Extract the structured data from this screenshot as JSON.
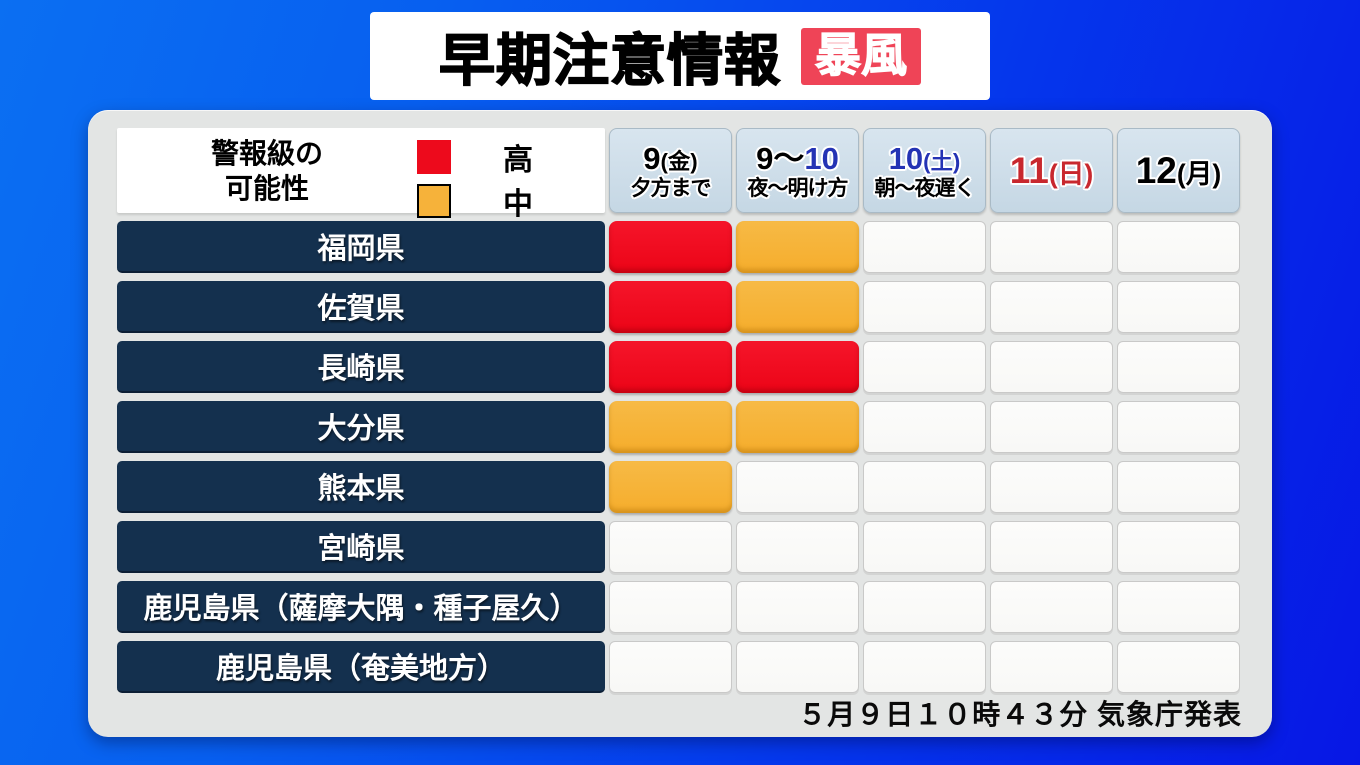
{
  "title": {
    "text": "早期注意情報",
    "badge": "暴風"
  },
  "legend": {
    "title_line1": "警報級の",
    "title_line2": "可能性",
    "items": [
      {
        "label": "高",
        "color": "#ed0a1c"
      },
      {
        "label": "中",
        "color": "#f6b23a"
      }
    ]
  },
  "columns": [
    {
      "p1": "9",
      "p2": "(金)",
      "sub": "夕方まで"
    },
    {
      "p1": "9～",
      "p2": "10",
      "sub": "夜～明け方"
    },
    {
      "p1": "10",
      "p2": "(土)",
      "sub": "朝～夜遅く"
    },
    {
      "p1": "11",
      "p2": "(日)",
      "sub": ""
    },
    {
      "p1": "12",
      "p2": "(月)",
      "sub": ""
    }
  ],
  "rows": [
    {
      "label": "福岡県",
      "cells": [
        "high",
        "mid",
        "none",
        "none",
        "none"
      ]
    },
    {
      "label": "佐賀県",
      "cells": [
        "high",
        "mid",
        "none",
        "none",
        "none"
      ]
    },
    {
      "label": "長崎県",
      "cells": [
        "high",
        "high",
        "none",
        "none",
        "none"
      ]
    },
    {
      "label": "大分県",
      "cells": [
        "mid",
        "mid",
        "none",
        "none",
        "none"
      ]
    },
    {
      "label": "熊本県",
      "cells": [
        "mid",
        "none",
        "none",
        "none",
        "none"
      ]
    },
    {
      "label": "宮崎県",
      "cells": [
        "none",
        "none",
        "none",
        "none",
        "none"
      ]
    },
    {
      "label": "鹿児島県（薩摩大隅・種子屋久）",
      "cells": [
        "none",
        "none",
        "none",
        "none",
        "none"
      ]
    },
    {
      "label": "鹿児島県（奄美地方）",
      "cells": [
        "none",
        "none",
        "none",
        "none",
        "none"
      ]
    }
  ],
  "footer": {
    "text": "５月９日１０時４３分 気象庁発表"
  },
  "colors": {
    "high": "#ed0a1c",
    "mid": "#f6b23a",
    "row_label_bg": "#14304e",
    "badge_bg": "#ef4457",
    "panel_bg": "#e3e5e4",
    "header_cell_bg": "#cdddea",
    "header_blue_text": "#2433b4",
    "header_red_text": "#c8282e",
    "background_blue": "#0536ec"
  },
  "chart_data": {
    "type": "heatmap",
    "title": "早期注意情報（暴風） 警報級の可能性",
    "columns": [
      "9(金) 夕方まで",
      "9～10 夜～明け方",
      "10(土) 朝～夜遅く",
      "11(日)",
      "12(月)"
    ],
    "rows": [
      "福岡県",
      "佐賀県",
      "長崎県",
      "大分県",
      "熊本県",
      "宮崎県",
      "鹿児島県（薩摩大隅・種子屋久）",
      "鹿児島県（奄美地方）"
    ],
    "values": [
      [
        "高",
        "中",
        null,
        null,
        null
      ],
      [
        "高",
        "中",
        null,
        null,
        null
      ],
      [
        "高",
        "高",
        null,
        null,
        null
      ],
      [
        "中",
        "中",
        null,
        null,
        null
      ],
      [
        "中",
        null,
        null,
        null,
        null
      ],
      [
        null,
        null,
        null,
        null,
        null
      ],
      [
        null,
        null,
        null,
        null,
        null
      ],
      [
        null,
        null,
        null,
        null,
        null
      ]
    ],
    "legend": {
      "高": "#ed0a1c",
      "中": "#f6b23a"
    },
    "annotation": "５月９日１０時４３分 気象庁発表"
  }
}
